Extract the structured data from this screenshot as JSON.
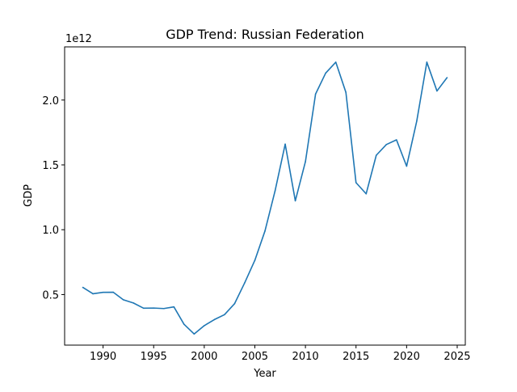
{
  "chart_data": {
    "type": "line",
    "title": "GDP Trend: Russian Federation",
    "xlabel": "Year",
    "ylabel": "GDP",
    "y_offset_label": "1e12",
    "xlim": [
      1986.2,
      2025.8
    ],
    "ylim": [
      0.11,
      2.41
    ],
    "y_scale_factor": 1000000000000.0,
    "x_ticks": [
      1990,
      1995,
      2000,
      2005,
      2010,
      2015,
      2020,
      2025
    ],
    "x_tick_labels": [
      "1990",
      "1995",
      "2000",
      "2005",
      "2010",
      "2015",
      "2020",
      "2025"
    ],
    "y_ticks": [
      0.5,
      1.0,
      1.5,
      2.0
    ],
    "y_tick_labels": [
      "0.5",
      "1.0",
      "1.5",
      "2.0"
    ],
    "grid": false,
    "series": [
      {
        "color": "#1f77b4",
        "x": [
          1988,
          1989,
          1990,
          1991,
          1992,
          1993,
          1994,
          1995,
          1996,
          1997,
          1998,
          1999,
          2000,
          2001,
          2002,
          2003,
          2004,
          2005,
          2006,
          2007,
          2008,
          2009,
          2010,
          2011,
          2012,
          2013,
          2014,
          2015,
          2016,
          2017,
          2018,
          2019,
          2020,
          2021,
          2022,
          2023,
          2024
        ],
        "y": [
          0.555,
          0.506,
          0.517,
          0.518,
          0.46,
          0.435,
          0.395,
          0.396,
          0.392,
          0.405,
          0.271,
          0.196,
          0.26,
          0.307,
          0.345,
          0.43,
          0.591,
          0.764,
          0.99,
          1.3,
          1.66,
          1.223,
          1.525,
          2.046,
          2.208,
          2.292,
          2.059,
          1.363,
          1.277,
          1.574,
          1.657,
          1.693,
          1.49,
          1.837,
          2.292,
          2.07,
          2.173
        ]
      }
    ]
  }
}
